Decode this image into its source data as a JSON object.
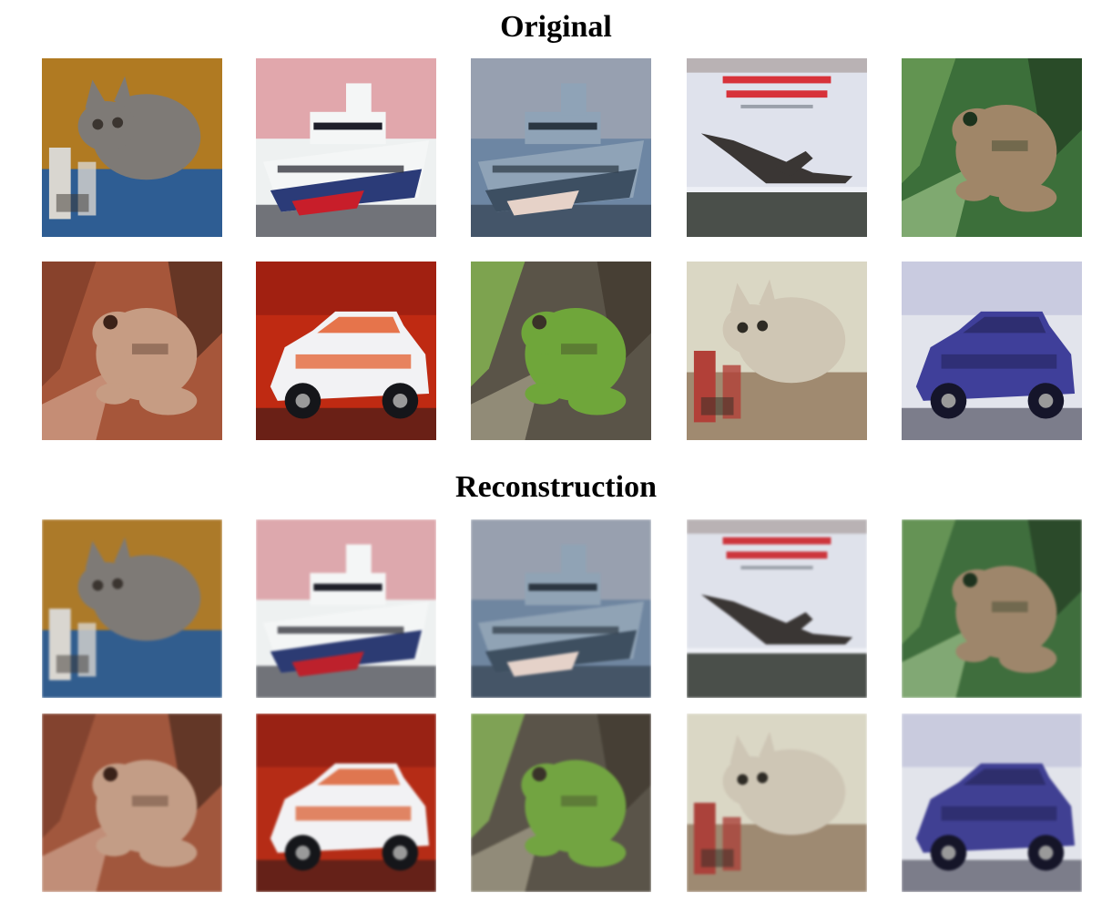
{
  "sections": {
    "original_title": "Original",
    "reconstruction_title": "Reconstruction"
  },
  "images": [
    {
      "subject": "cat",
      "icon": "cat-image-icon",
      "palette": {
        "bg": "#b07a22",
        "main": "#7e7a76",
        "accent": "#2e5d93",
        "dark": "#3b3530",
        "light": "#d9d6d0"
      }
    },
    {
      "subject": "ship",
      "icon": "ship-image-icon",
      "palette": {
        "bg": "#eef1f1",
        "main": "#f4f6f6",
        "accent": "#2b3b78",
        "dark": "#1e1f2a",
        "light": "#c81e2a"
      }
    },
    {
      "subject": "ship",
      "icon": "ship-image-icon",
      "palette": {
        "bg": "#6d86a3",
        "main": "#8fa3b7",
        "accent": "#3d4f62",
        "dark": "#2a3642",
        "light": "#e6d2c8"
      }
    },
    {
      "subject": "airplane",
      "icon": "airplane-image-icon",
      "palette": {
        "bg": "#dfe2ec",
        "main": "#3a3634",
        "accent": "#d7323a",
        "dark": "#4a4f4a",
        "light": "#eef0f6"
      }
    },
    {
      "subject": "frog",
      "icon": "frog-image-icon",
      "palette": {
        "bg": "#3c6f3a",
        "main": "#a08668",
        "accent": "#72a45b",
        "dark": "#1c331d",
        "light": "#c2e3a6"
      }
    },
    {
      "subject": "frog",
      "icon": "frog-image-icon",
      "palette": {
        "bg": "#a6563a",
        "main": "#c69c83",
        "accent": "#7c3a26",
        "dark": "#3c2218",
        "light": "#e3c3af"
      }
    },
    {
      "subject": "car",
      "icon": "car-image-icon",
      "palette": {
        "bg": "#bf2a12",
        "main": "#f2f2f4",
        "accent": "#e25420",
        "dark": "#15161a",
        "light": "#8e1a10"
      }
    },
    {
      "subject": "frog",
      "icon": "frog-image-icon",
      "palette": {
        "bg": "#5a5448",
        "main": "#6fa63a",
        "accent": "#8cc452",
        "dark": "#3a3228",
        "light": "#c7c2a6"
      }
    },
    {
      "subject": "cat",
      "icon": "cat-image-icon",
      "palette": {
        "bg": "#dad7c4",
        "main": "#cfc6b4",
        "accent": "#a08a70",
        "dark": "#2e2b24",
        "light": "#b24038"
      }
    },
    {
      "subject": "car",
      "icon": "car-image-icon",
      "palette": {
        "bg": "#e2e4ec",
        "main": "#3f3f9a",
        "accent": "#2a2a66",
        "dark": "#15152a",
        "light": "#b9bbd8"
      }
    }
  ]
}
